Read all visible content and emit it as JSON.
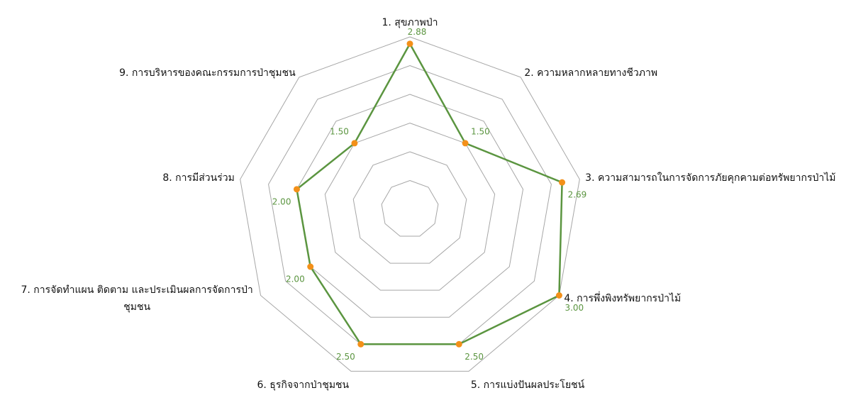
{
  "chart_data": {
    "type": "radar",
    "categories": [
      "1. สุขภาพป่า",
      "2. ความหลากหลายทางชีวภาพ",
      "3. ความสามารถในการจัดการภัยคุกคามต่อทรัพยากรป่าไม้",
      "4. การพึ่งพิงทรัพยากรป่าไม้",
      "5. การแบ่งปันผลประโยชน์",
      "6. ธุรกิจจากป่าชุมชน",
      "7. การจัดทำแผน ติดตาม และประเมินผลการจัดการป่าชุมชน",
      "8. การมีส่วนร่วม",
      "9. การบริหารของคณะกรรมการป่าชุมชน"
    ],
    "values": [
      2.88,
      1.5,
      2.69,
      3.0,
      2.5,
      2.5,
      2.0,
      2.0,
      1.5
    ],
    "value_labels": [
      "2.88",
      "1.50",
      "2.69",
      "3.00",
      "2.50",
      "2.50",
      "2.00",
      "2.00",
      "1.50"
    ],
    "color": "#5b9540",
    "marker_color": "#f39019",
    "rlim": [
      0,
      3
    ],
    "rticks": [
      0.5,
      1,
      1.5,
      2,
      2.5,
      3
    ],
    "grid": true
  }
}
